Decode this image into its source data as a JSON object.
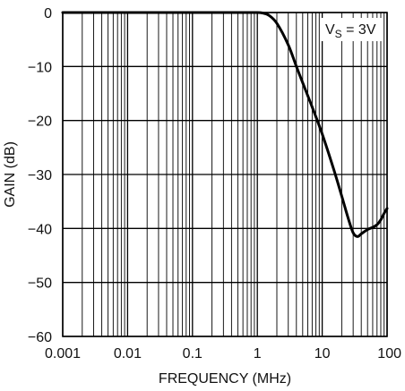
{
  "chart_data": {
    "type": "line",
    "title": "",
    "xlabel": "FREQUENCY (MHz)",
    "ylabel": "GAIN (dB)",
    "x_scale": "log",
    "xlim": [
      0.001,
      100
    ],
    "ylim": [
      -60,
      0
    ],
    "x_ticks": [
      0.001,
      0.01,
      0.1,
      1,
      10,
      100
    ],
    "x_tick_labels": [
      "0.001",
      "0.01",
      "0.1",
      "1",
      "10",
      "100"
    ],
    "y_ticks": [
      0,
      -10,
      -20,
      -30,
      -40,
      -50,
      -60
    ],
    "y_tick_labels": [
      "0",
      "−10",
      "−20",
      "−30",
      "−40",
      "−50",
      "−60"
    ],
    "grid": true,
    "annotation": {
      "prefix": "V",
      "subscript": "S",
      "suffix": " = 3V",
      "position": "top-right"
    },
    "series": [
      {
        "color": "#000000",
        "x": [
          0.001,
          0.01,
          0.1,
          0.5,
          1,
          1.2,
          1.5,
          2,
          3,
          4,
          5,
          7,
          10,
          15,
          20,
          25,
          30,
          35,
          40,
          50,
          60,
          70,
          80,
          90,
          100
        ],
        "y": [
          0,
          0,
          0,
          0,
          0,
          -0.1,
          -0.5,
          -2,
          -6,
          -10,
          -13,
          -17.5,
          -22.5,
          -29,
          -34,
          -38,
          -40.8,
          -41.5,
          -41,
          -40.2,
          -39.8,
          -39.3,
          -38.4,
          -37.2,
          -36.3
        ]
      }
    ]
  }
}
